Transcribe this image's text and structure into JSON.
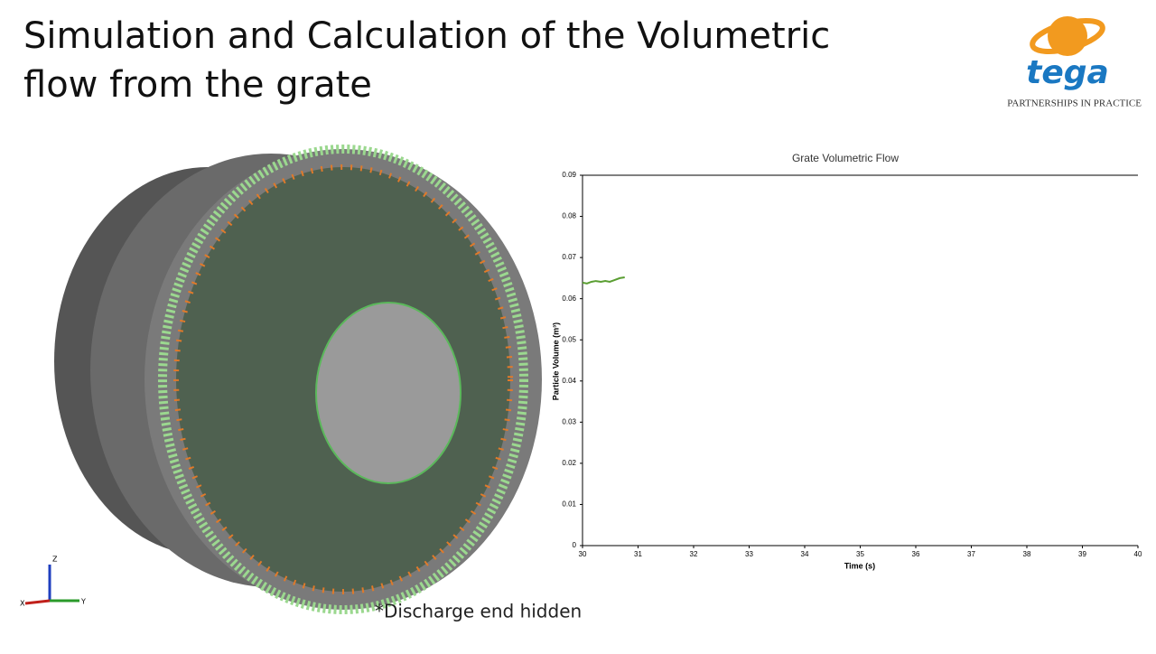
{
  "header": {
    "title_line1": "Simulation and Calculation of the Volumetric",
    "title_line2": "flow from the grate"
  },
  "logo": {
    "name": "tega",
    "tagline": "PARTNERSHIPS IN PRACTICE"
  },
  "render": {
    "caption": "*Discharge end hidden",
    "axis_z": "Z",
    "axis_x": "X",
    "axis_y": "Y"
  },
  "chart_data": {
    "type": "line",
    "title": "Grate Volumetric Flow",
    "x_label": "Time (s)",
    "y_label": "Particle Volume (m³)",
    "x": [
      30,
      30.08,
      30.16,
      30.24,
      30.33,
      30.41,
      30.49,
      30.57,
      30.67,
      30.76
    ],
    "series": [
      {
        "name": "Grate",
        "color": "#5a9e32",
        "values": [
          0.0639,
          0.0637,
          0.0641,
          0.0643,
          0.0641,
          0.0643,
          0.0641,
          0.0645,
          0.065,
          0.0652
        ]
      }
    ],
    "xlim": [
      30,
      40
    ],
    "xticks": [
      30,
      31,
      32,
      33,
      34,
      35,
      36,
      37,
      38,
      39,
      40
    ],
    "ylim": [
      0,
      0.09
    ],
    "yticks": [
      0,
      0.01,
      0.02,
      0.03,
      0.04,
      0.05,
      0.06,
      0.07,
      0.08,
      0.09
    ]
  }
}
